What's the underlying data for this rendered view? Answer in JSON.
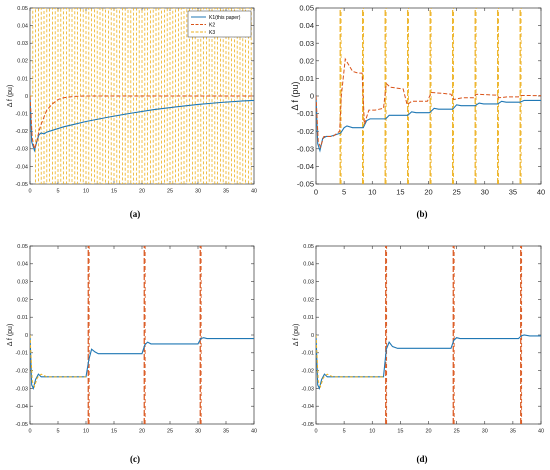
{
  "colors": {
    "k1": "#1f77b4",
    "k2": "#d95319",
    "k3": "#edb120"
  },
  "chart_data": [
    {
      "panel": "a",
      "caption": "(a)",
      "type": "line",
      "ylabel": "Δ f (pu)",
      "xlim": [
        0,
        40
      ],
      "ylim": [
        -0.05,
        0.05
      ],
      "xticks": [
        0,
        5,
        10,
        15,
        20,
        25,
        30,
        35,
        40
      ],
      "yticks": [
        -0.05,
        -0.04,
        -0.03,
        -0.02,
        -0.01,
        0,
        0.01,
        0.02,
        0.03,
        0.04,
        0.05
      ],
      "ytick_labels": [
        "-0.05",
        "-0.04",
        "-0.03",
        "-0.02",
        "-0.01",
        "0",
        "0.01",
        "0.02",
        "0.03",
        "0.04",
        "0.05"
      ],
      "legend": {
        "position": "top-right",
        "entries": [
          "K1(this paper)",
          "K2",
          "K3"
        ]
      },
      "series": [
        {
          "name": "K1(this paper)",
          "color_key": "k1",
          "x": [
            0,
            0.3,
            0.8,
            1.2,
            1.6,
            2,
            2.5,
            3,
            4,
            6,
            8,
            10,
            14,
            18,
            22,
            26,
            30,
            34,
            38,
            40
          ],
          "y": [
            0,
            -0.026,
            -0.031,
            -0.026,
            -0.022,
            -0.021,
            -0.0215,
            -0.0205,
            -0.0195,
            -0.0175,
            -0.016,
            -0.0145,
            -0.012,
            -0.0098,
            -0.0078,
            -0.0062,
            -0.0048,
            -0.0037,
            -0.0028,
            -0.0025
          ]
        },
        {
          "name": "K2",
          "color_key": "k2",
          "x": [
            0,
            0.4,
            0.8,
            1.2,
            1.6,
            2,
            2.5,
            3,
            4,
            5,
            6,
            8,
            10,
            40
          ],
          "y": [
            0,
            -0.024,
            -0.03,
            -0.026,
            -0.02,
            -0.016,
            -0.012,
            -0.008,
            -0.0045,
            -0.002,
            -0.001,
            -0.0002,
            0,
            0
          ]
        },
        {
          "name": "K3",
          "color_key": "k3",
          "style": "switching",
          "x_start": 0.5,
          "x_end": 40,
          "period": 1.0,
          "low": -0.05,
          "high": 0.05
        }
      ]
    },
    {
      "panel": "b",
      "caption": "(b)",
      "type": "line",
      "ylabel": "Δ f (pu)",
      "xlim": [
        0,
        40
      ],
      "ylim": [
        -0.05,
        0.05
      ],
      "xticks": [
        0,
        5,
        10,
        15,
        20,
        25,
        30,
        35,
        40
      ],
      "yticks": [
        -0.05,
        -0.04,
        -0.03,
        -0.02,
        -0.01,
        0,
        0.01,
        0.02,
        0.03,
        0.04,
        0.05
      ],
      "ytick_labels": [
        "-0.05",
        "-0.04",
        "-0.03",
        "-0.02",
        "-0.01",
        "0",
        "0.01",
        "0.02",
        "0.03",
        "0.04",
        "0.05"
      ],
      "series": [
        {
          "name": "K1",
          "color_key": "k1",
          "x": [
            0,
            0.3,
            0.7,
            1.2,
            1.8,
            2.5,
            3.5,
            4.4,
            5.0,
            5.5,
            6.5,
            8.4,
            9.0,
            9.6,
            10.5,
            12.4,
            13.0,
            13.8,
            16.3,
            17.0,
            17.8,
            20.2,
            21.0,
            21.8,
            24.3,
            25.0,
            25.8,
            28.3,
            29.0,
            29.8,
            32.3,
            33.0,
            33.8,
            36.3,
            37.0,
            40
          ],
          "y": [
            0,
            -0.027,
            -0.031,
            -0.024,
            -0.023,
            -0.023,
            -0.022,
            -0.021,
            -0.018,
            -0.017,
            -0.018,
            -0.018,
            -0.014,
            -0.013,
            -0.013,
            -0.013,
            -0.011,
            -0.011,
            -0.011,
            -0.009,
            -0.0095,
            -0.0095,
            -0.007,
            -0.0075,
            -0.0075,
            -0.005,
            -0.0055,
            -0.0055,
            -0.004,
            -0.0045,
            -0.0045,
            -0.003,
            -0.0035,
            -0.0035,
            -0.0025,
            -0.0025
          ]
        },
        {
          "name": "K2",
          "color_key": "k2",
          "x": [
            0,
            0.4,
            0.8,
            1.4,
            2.2,
            3.0,
            4.2,
            4.5,
            5.2,
            6.5,
            7.5,
            8.2,
            8.6,
            9.4,
            10.5,
            12.0,
            12.5,
            13.2,
            15.5,
            16.2,
            17.0,
            19.8,
            20.5,
            22.5,
            24.0,
            24.5,
            26.0,
            28.0,
            28.5,
            30.0,
            32.0,
            32.5,
            34.0,
            36.0,
            36.5,
            40
          ],
          "y": [
            0,
            -0.026,
            -0.029,
            -0.023,
            -0.023,
            -0.023,
            -0.02,
            0.0,
            0.021,
            0.014,
            0.013,
            0.013,
            -0.016,
            -0.008,
            -0.008,
            -0.007,
            0.007,
            0.005,
            0.004,
            -0.005,
            -0.003,
            -0.003,
            0.002,
            0.0015,
            0.001,
            -0.002,
            -0.001,
            -0.001,
            0.001,
            0.0008,
            0.0005,
            -0.001,
            -0.0005,
            -0.0005,
            0.0003,
            0.0002
          ]
        },
        {
          "name": "K3",
          "color_key": "k3",
          "style": "spikes",
          "spikes": [
            4.3,
            8.3,
            12.3,
            16.3,
            20.3,
            24.3,
            28.3,
            32.3,
            36.3
          ]
        }
      ]
    },
    {
      "panel": "c",
      "caption": "(c)",
      "type": "line",
      "ylabel": "Δ f (pu)",
      "xlim": [
        0,
        40
      ],
      "ylim": [
        -0.05,
        0.05
      ],
      "xticks": [
        0,
        5,
        10,
        15,
        20,
        25,
        30,
        35,
        40
      ],
      "yticks": [
        -0.05,
        -0.04,
        -0.03,
        -0.02,
        -0.01,
        0,
        0.01,
        0.02,
        0.03,
        0.04,
        0.05
      ],
      "ytick_labels": [
        "-0.05",
        "-0.04",
        "-0.03",
        "-0.02",
        "-0.01",
        "0",
        "0.01",
        "0.02",
        "0.03",
        "0.04",
        "0.05"
      ],
      "series": [
        {
          "name": "K1",
          "color_key": "k1",
          "x": [
            0,
            0.3,
            0.6,
            1.0,
            1.5,
            2.0,
            3.0,
            10.0,
            10.5,
            11.0,
            11.6,
            12.2,
            13.0,
            20.0,
            20.5,
            21.0,
            21.6,
            22.5,
            30.0,
            30.5,
            31.0,
            31.6,
            32.5,
            40
          ],
          "y": [
            0,
            -0.028,
            -0.03,
            -0.025,
            -0.022,
            -0.0235,
            -0.0235,
            -0.0235,
            -0.014,
            -0.008,
            -0.0095,
            -0.0105,
            -0.0105,
            -0.0105,
            -0.0055,
            -0.004,
            -0.005,
            -0.005,
            -0.005,
            -0.002,
            -0.0015,
            -0.002,
            -0.002,
            -0.002
          ]
        },
        {
          "name": "K2",
          "color_key": "k2",
          "style": "spikes",
          "spikes": [
            10.4,
            20.4,
            30.4
          ]
        },
        {
          "name": "K3",
          "color_key": "k3",
          "style": "dashed-overlay",
          "x": [
            0,
            0.4,
            0.8,
            1.3,
            2.0,
            3.0,
            10.0
          ],
          "y": [
            0,
            -0.026,
            -0.029,
            -0.024,
            -0.022,
            -0.0235,
            -0.0235
          ]
        }
      ]
    },
    {
      "panel": "d",
      "caption": "(d)",
      "type": "line",
      "ylabel": "Δ f (pu)",
      "xlim": [
        0,
        40
      ],
      "ylim": [
        -0.05,
        0.05
      ],
      "xticks": [
        0,
        5,
        10,
        15,
        20,
        25,
        30,
        35,
        40
      ],
      "yticks": [
        -0.05,
        -0.04,
        -0.03,
        -0.02,
        -0.01,
        0,
        0.01,
        0.02,
        0.03,
        0.04,
        0.05
      ],
      "ytick_labels": [
        "-0.05",
        "-0.04",
        "-0.03",
        "-0.02",
        "-0.01",
        "0",
        "0.01",
        "0.02",
        "0.03",
        "0.04",
        "0.05"
      ],
      "series": [
        {
          "name": "K1",
          "color_key": "k1",
          "x": [
            0,
            0.3,
            0.6,
            1.0,
            1.5,
            2.0,
            3.0,
            12.0,
            12.5,
            13.0,
            13.6,
            14.5,
            24.0,
            24.5,
            25.0,
            25.6,
            26.5,
            36.0,
            36.5,
            37.0,
            38.0,
            40
          ],
          "y": [
            0,
            -0.028,
            -0.03,
            -0.025,
            -0.022,
            -0.0235,
            -0.0235,
            -0.0235,
            -0.008,
            -0.004,
            -0.0065,
            -0.0075,
            -0.0075,
            -0.003,
            -0.0015,
            -0.002,
            -0.002,
            -0.002,
            -0.0005,
            0.0,
            -0.0005,
            -0.0005
          ]
        },
        {
          "name": "K2",
          "color_key": "k2",
          "style": "spikes",
          "spikes": [
            12.4,
            24.4,
            36.4
          ]
        },
        {
          "name": "K3",
          "color_key": "k3",
          "style": "dashed-overlay",
          "x": [
            0,
            0.4,
            0.8,
            1.3,
            2.0,
            3.0,
            12.0
          ],
          "y": [
            0,
            -0.026,
            -0.029,
            -0.024,
            -0.022,
            -0.0235,
            -0.0235
          ]
        }
      ]
    }
  ]
}
